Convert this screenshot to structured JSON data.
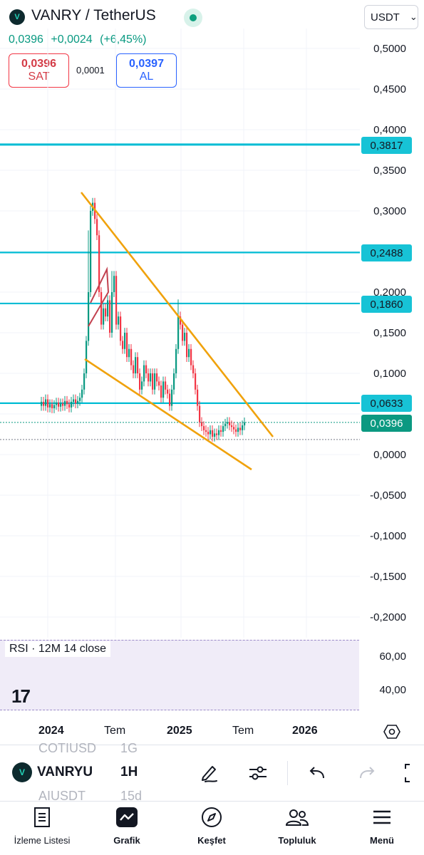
{
  "header": {
    "symbol_logo": "V",
    "symbol_title": "VANRY / TetherUS",
    "last_price": "0,0396",
    "change": "+0,0024",
    "change_pct": "(+6,45%)",
    "currency": "USDT",
    "currency_chevron": "⌄",
    "sell": {
      "price": "0,0396",
      "label": "SAT"
    },
    "buy": {
      "price": "0,0397",
      "label": "AL"
    },
    "spread": "0,0001"
  },
  "price_axis": {
    "labels": [
      "0,5000",
      "0,4500",
      "0,4000",
      "0,3500",
      "0,3000",
      "0,2000",
      "0,1500",
      "0,1000",
      "0,0000",
      "-0,0500",
      "-0,1000",
      "-0,1500",
      "-0,2000"
    ],
    "tags": [
      {
        "value": "0,3817",
        "color": "#00bcd4"
      },
      {
        "value": "0,2488",
        "color": "#00bcd4"
      },
      {
        "value": "0,1860",
        "color": "#00bcd4"
      },
      {
        "value": "0,0633",
        "color": "#00bcd4"
      },
      {
        "value": "0,0396",
        "color": "#089981"
      }
    ]
  },
  "chart_data": {
    "type": "candlestick",
    "symbol": "VANRY / TetherUS",
    "price_axis_range": [
      -0.2,
      0.5
    ],
    "horizontal_levels": [
      0.3817,
      0.2488,
      0.186,
      0.0633
    ],
    "last_price": 0.0396,
    "x_labels": [
      "2024",
      "Tem",
      "2025",
      "Tem",
      "2026"
    ],
    "colors": {
      "up": "#089981",
      "down": "#f23645",
      "levels": "#00bcd4",
      "channel": "#f0a20c"
    }
  },
  "rsi": {
    "label": "RSI · 12M 14 close",
    "levels": [
      "60,00",
      "40,00"
    ],
    "logo": "17"
  },
  "time_axis": {
    "labels": [
      "2024",
      "Tem",
      "2025",
      "Tem",
      "2026"
    ]
  },
  "toolbar": {
    "ghost_above": {
      "symbol": "COTIUSD",
      "interval": "1G"
    },
    "ghost_below": {
      "symbol": "AIUSDT",
      "interval": "15d"
    },
    "symbol": "VANRYU",
    "interval": "1H",
    "icons": [
      "pen-icon",
      "settings-sliders-icon",
      "undo-icon",
      "redo-icon",
      "fullscreen-icon"
    ]
  },
  "nav": {
    "items": [
      {
        "label": "İzleme Listesi",
        "icon": "watchlist-icon"
      },
      {
        "label": "Grafik",
        "icon": "chart-icon"
      },
      {
        "label": "Keşfet",
        "icon": "compass-icon"
      },
      {
        "label": "Topluluk",
        "icon": "community-icon"
      },
      {
        "label": "Menü",
        "icon": "menu-icon"
      }
    ]
  }
}
